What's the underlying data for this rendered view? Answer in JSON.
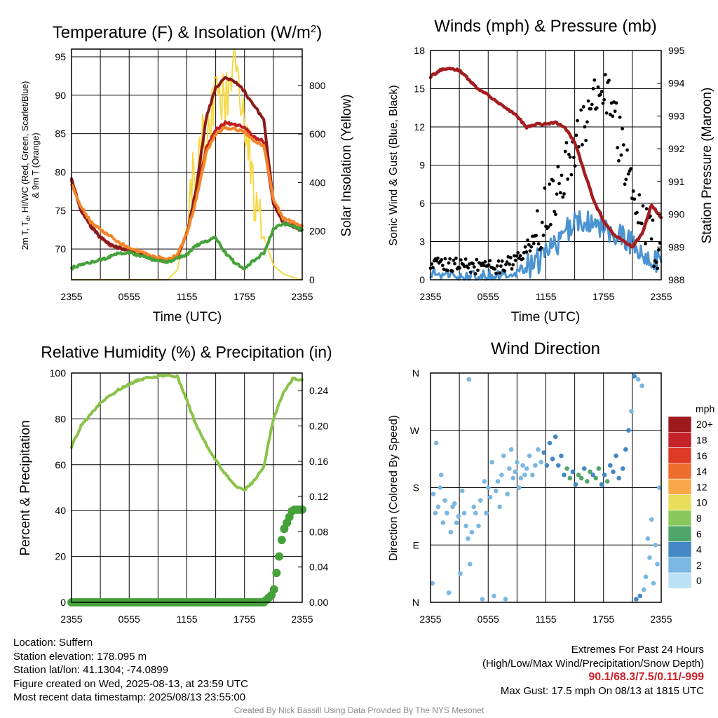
{
  "chart_data": [
    {
      "type": "line",
      "title": "Temperature (F) & Insolation (W/m²)",
      "xlabel": "Time (UTC)",
      "ylabel_left": "2m T, Td, HI/WC (Red, Green, Scarlet/Blue) & 9m T (Orange)",
      "ylabel_right": "Solar Insolation (Yellow)",
      "x_ticks": [
        "2355",
        "0555",
        "1155",
        "1755",
        "2355"
      ],
      "ylim": [
        66,
        96
      ],
      "y_ticks": [
        70,
        75,
        80,
        85,
        90,
        95
      ],
      "ylim_right": [
        0,
        950
      ],
      "y_ticks_right": [
        0,
        200,
        400,
        600,
        800
      ],
      "x_hours_since_2355": [
        0,
        1,
        2,
        3,
        4,
        5,
        6,
        7,
        8,
        9,
        10,
        11,
        12,
        13,
        14,
        15,
        16,
        17,
        18,
        19,
        20,
        21,
        22,
        23,
        24
      ],
      "series": [
        {
          "name": "2m T",
          "color": "#c01e1f",
          "values": [
            79,
            75,
            73,
            71.5,
            70.6,
            70.1,
            69.8,
            69.5,
            69.0,
            68.6,
            68.4,
            69.0,
            72,
            77,
            83,
            85.5,
            86.4,
            86.2,
            85.8,
            84.5,
            84,
            76,
            73.5,
            73.0,
            72.5
          ]
        },
        {
          "name": "Heat Index / Wind Chill",
          "color": "#8b1a1a",
          "values": [
            79,
            75,
            73,
            71.5,
            70.6,
            70.1,
            69.8,
            69.5,
            69.0,
            68.6,
            68.4,
            69.0,
            72,
            78,
            87,
            91,
            92.3,
            91.8,
            90.5,
            88.5,
            87,
            76,
            73.5,
            73.0,
            72.5
          ]
        },
        {
          "name": "9m T",
          "color": "#f4862a",
          "values": [
            78.5,
            75.5,
            73.5,
            72.5,
            71.8,
            70.8,
            70.2,
            69.7,
            69.2,
            68.9,
            68.7,
            69.2,
            72,
            76.5,
            82.5,
            85,
            85.8,
            85.6,
            85.2,
            84,
            83.5,
            76.5,
            74,
            73.5,
            73.0
          ]
        },
        {
          "name": "Td",
          "color": "#45a23a",
          "values": [
            67.5,
            68,
            68.3,
            68.6,
            69,
            69.5,
            69.5,
            69.2,
            68.8,
            68.5,
            68.3,
            68.8,
            69.3,
            70.5,
            71,
            71.5,
            69.5,
            68.2,
            67.5,
            68.5,
            69.5,
            72.5,
            73.3,
            73.0,
            72.5
          ]
        },
        {
          "name": "Solar Insolation",
          "color": "#f6d94a",
          "axis": "right",
          "values": [
            0,
            0,
            0,
            0,
            0,
            0,
            0,
            0,
            0,
            0,
            0,
            40,
            220,
            480,
            620,
            720,
            760,
            810,
            640,
            380,
            180,
            60,
            25,
            10,
            0
          ]
        }
      ]
    },
    {
      "type": "line",
      "title": "Winds (mph) & Pressure (mb)",
      "xlabel": "Time (UTC)",
      "ylabel_left": "Sonic Wind & Gust (Blue, Black)",
      "ylabel_right": "Station Pressure (Maroon)",
      "x_ticks": [
        "2355",
        "0555",
        "1155",
        "1755",
        "2355"
      ],
      "ylim": [
        0,
        18
      ],
      "y_ticks": [
        0,
        3,
        6,
        9,
        12,
        15,
        18
      ],
      "ylim_right": [
        988,
        995
      ],
      "y_ticks_right": [
        988,
        989,
        990,
        991,
        992,
        993,
        994,
        995
      ],
      "x_hours_since_2355": [
        0,
        1,
        2,
        3,
        4,
        5,
        6,
        7,
        8,
        9,
        10,
        11,
        12,
        13,
        14,
        15,
        16,
        17,
        18,
        19,
        20,
        21,
        22,
        23,
        24
      ],
      "series": [
        {
          "name": "Sonic Wind",
          "color": "#4b93d1",
          "values": [
            0.6,
            0.4,
            0.5,
            0.3,
            0.4,
            0.3,
            0.4,
            0.3,
            0.5,
            0.6,
            1.0,
            1.3,
            2.0,
            2.8,
            3.6,
            4.2,
            4.4,
            4.6,
            4.3,
            3.8,
            3.4,
            2.8,
            2.3,
            1.6,
            1.4
          ]
        },
        {
          "name": "Gust",
          "color": "#000000",
          "values": [
            1.5,
            1.2,
            1.3,
            1.0,
            1.1,
            1.0,
            1.0,
            1.1,
            1.2,
            1.5,
            2.5,
            3.5,
            5.5,
            6.8,
            8.5,
            10.5,
            12,
            14,
            15,
            13,
            10,
            7,
            5,
            3,
            2.5
          ]
        },
        {
          "name": "Station Pressure",
          "color": "#a31c20",
          "axis": "right",
          "values": [
            994.2,
            994.4,
            994.45,
            994.4,
            994.1,
            993.8,
            993.65,
            993.4,
            993.2,
            993.0,
            992.65,
            992.75,
            992.75,
            992.8,
            992.65,
            992.2,
            991.3,
            990.4,
            989.8,
            989.4,
            989.2,
            989.0,
            989.4,
            990.3,
            989.9
          ]
        }
      ],
      "gust_max": 17.5
    },
    {
      "type": "line",
      "title": "Relative Humidity (%) & Precipitation (in)",
      "xlabel": "",
      "ylabel_left": "Percent & Precipitation",
      "x_ticks": [
        "2355",
        "0555",
        "1155",
        "1755",
        "2355"
      ],
      "ylim": [
        0,
        100
      ],
      "y_ticks": [
        0,
        20,
        40,
        60,
        80,
        100
      ],
      "ylim_right": [
        0,
        0.26
      ],
      "y_ticks_right": [
        "0.00",
        "0.04",
        "0.08",
        "0.12",
        "0.16",
        "0.20",
        "0.24"
      ],
      "x_hours_since_2355": [
        0,
        1,
        2,
        3,
        4,
        5,
        6,
        7,
        8,
        9,
        10,
        11,
        12,
        13,
        14,
        15,
        16,
        17,
        18,
        19,
        20,
        21,
        22,
        23,
        24
      ],
      "series": [
        {
          "name": "Relative Humidity",
          "color": "#8bc34a",
          "values": [
            68,
            77,
            82,
            87,
            90,
            93,
            95,
            97,
            98,
            98.5,
            99,
            98.5,
            88,
            77,
            69,
            62,
            56,
            51,
            49,
            53,
            59,
            80,
            91,
            97.5,
            97
          ]
        },
        {
          "name": "Precipitation",
          "color": "#45a23a",
          "axis": "right",
          "values": [
            0,
            0,
            0,
            0,
            0,
            0,
            0,
            0,
            0,
            0,
            0,
            0,
            0,
            0,
            0,
            0,
            0,
            0,
            0,
            0,
            0,
            0.01,
            0.08,
            0.105,
            0.105
          ]
        }
      ]
    },
    {
      "type": "scatter",
      "title": "Wind Direction",
      "ylabel": "Direction (Colored By Speed)",
      "x_ticks": [
        "2355",
        "0555",
        "1155",
        "1755",
        "2355"
      ],
      "y_ticks": [
        "N",
        "E",
        "S",
        "W",
        "N"
      ],
      "ylim_degrees": [
        0,
        360
      ],
      "legend_title": "mph",
      "legend_labels": [
        "20+",
        "18",
        "16",
        "14",
        "12",
        "10",
        "8",
        "6",
        "4",
        "2",
        "0"
      ],
      "legend_colors": [
        "#9e1a1f",
        "#c4232a",
        "#dd3b26",
        "#ee6c2d",
        "#f8a748",
        "#e9df5a",
        "#8ac85b",
        "#4fa66a",
        "#4387c4",
        "#7bb7e1",
        "#bde1f4"
      ],
      "points": [
        {
          "x": 0.2,
          "y": 30,
          "speed": 1
        },
        {
          "x": 0.3,
          "y": 170,
          "speed": 1
        },
        {
          "x": 0.5,
          "y": 140,
          "speed": 1
        },
        {
          "x": 0.6,
          "y": 250,
          "speed": 1
        },
        {
          "x": 0.8,
          "y": 150,
          "speed": 1
        },
        {
          "x": 1.0,
          "y": 180,
          "speed": 1
        },
        {
          "x": 1.1,
          "y": 200,
          "speed": 1
        },
        {
          "x": 1.3,
          "y": 125,
          "speed": 1
        },
        {
          "x": 1.5,
          "y": 160,
          "speed": 1
        },
        {
          "x": 1.7,
          "y": 140,
          "speed": 1
        },
        {
          "x": 1.9,
          "y": 15,
          "speed": 1
        },
        {
          "x": 2.1,
          "y": 110,
          "speed": 1
        },
        {
          "x": 2.3,
          "y": 150,
          "speed": 1
        },
        {
          "x": 2.5,
          "y": 155,
          "speed": 1
        },
        {
          "x": 2.7,
          "y": 125,
          "speed": 1
        },
        {
          "x": 2.9,
          "y": 135,
          "speed": 1
        },
        {
          "x": 3.1,
          "y": 45,
          "speed": 1
        },
        {
          "x": 3.3,
          "y": 175,
          "speed": 1
        },
        {
          "x": 3.5,
          "y": 140,
          "speed": 1
        },
        {
          "x": 3.7,
          "y": 120,
          "speed": 1
        },
        {
          "x": 3.9,
          "y": 100,
          "speed": 1
        },
        {
          "x": 4.0,
          "y": 350,
          "speed": 1
        },
        {
          "x": 4.1,
          "y": 60,
          "speed": 1
        },
        {
          "x": 4.3,
          "y": 110,
          "speed": 1
        },
        {
          "x": 4.5,
          "y": 150,
          "speed": 1
        },
        {
          "x": 4.7,
          "y": 140,
          "speed": 1
        },
        {
          "x": 5.0,
          "y": 120,
          "speed": 1
        },
        {
          "x": 5.2,
          "y": 160,
          "speed": 1
        },
        {
          "x": 5.4,
          "y": 5,
          "speed": 1
        },
        {
          "x": 5.6,
          "y": 190,
          "speed": 1
        },
        {
          "x": 5.8,
          "y": 140,
          "speed": 1
        },
        {
          "x": 6.0,
          "y": 180,
          "speed": 1
        },
        {
          "x": 6.2,
          "y": 165,
          "speed": 1
        },
        {
          "x": 6.4,
          "y": 220,
          "speed": 1
        },
        {
          "x": 6.6,
          "y": 10,
          "speed": 1
        },
        {
          "x": 6.8,
          "y": 175,
          "speed": 1
        },
        {
          "x": 7.0,
          "y": 190,
          "speed": 1
        },
        {
          "x": 7.2,
          "y": 150,
          "speed": 1
        },
        {
          "x": 7.4,
          "y": 200,
          "speed": 1
        },
        {
          "x": 7.6,
          "y": 230,
          "speed": 1
        },
        {
          "x": 7.8,
          "y": 5,
          "speed": 1
        },
        {
          "x": 8.0,
          "y": 170,
          "speed": 1
        },
        {
          "x": 8.2,
          "y": 210,
          "speed": 1
        },
        {
          "x": 8.4,
          "y": 240,
          "speed": 1
        },
        {
          "x": 8.6,
          "y": 195,
          "speed": 1
        },
        {
          "x": 8.8,
          "y": 205,
          "speed": 1
        },
        {
          "x": 9.0,
          "y": 220,
          "speed": 1
        },
        {
          "x": 9.2,
          "y": 180,
          "speed": 1
        },
        {
          "x": 9.4,
          "y": 195,
          "speed": 1
        },
        {
          "x": 9.6,
          "y": 215,
          "speed": 1
        },
        {
          "x": 9.8,
          "y": 200,
          "speed": 1
        },
        {
          "x": 10.0,
          "y": 210,
          "speed": 1
        },
        {
          "x": 10.3,
          "y": 230,
          "speed": 2
        },
        {
          "x": 10.6,
          "y": 200,
          "speed": 1
        },
        {
          "x": 10.9,
          "y": 215,
          "speed": 2
        },
        {
          "x": 11.2,
          "y": 240,
          "speed": 2
        },
        {
          "x": 11.5,
          "y": 220,
          "speed": 2
        },
        {
          "x": 11.8,
          "y": 235,
          "speed": 3
        },
        {
          "x": 12.1,
          "y": 215,
          "speed": 3
        },
        {
          "x": 12.4,
          "y": 250,
          "speed": 3
        },
        {
          "x": 12.7,
          "y": 225,
          "speed": 3
        },
        {
          "x": 13.0,
          "y": 260,
          "speed": 4
        },
        {
          "x": 13.3,
          "y": 215,
          "speed": 3
        },
        {
          "x": 13.6,
          "y": 230,
          "speed": 4
        },
        {
          "x": 13.9,
          "y": 200,
          "speed": 4
        },
        {
          "x": 14.2,
          "y": 210,
          "speed": 5
        },
        {
          "x": 14.5,
          "y": 195,
          "speed": 6
        },
        {
          "x": 14.8,
          "y": 205,
          "speed": 4
        },
        {
          "x": 15.1,
          "y": 185,
          "speed": 4
        },
        {
          "x": 15.4,
          "y": 200,
          "speed": 5
        },
        {
          "x": 15.7,
          "y": 195,
          "speed": 6
        },
        {
          "x": 16.0,
          "y": 210,
          "speed": 4
        },
        {
          "x": 16.3,
          "y": 190,
          "speed": 5
        },
        {
          "x": 16.6,
          "y": 205,
          "speed": 6
        },
        {
          "x": 16.9,
          "y": 200,
          "speed": 4
        },
        {
          "x": 17.2,
          "y": 195,
          "speed": 5
        },
        {
          "x": 17.5,
          "y": 210,
          "speed": 6
        },
        {
          "x": 17.8,
          "y": 185,
          "speed": 4
        },
        {
          "x": 18.1,
          "y": 200,
          "speed": 4
        },
        {
          "x": 18.4,
          "y": 190,
          "speed": 5
        },
        {
          "x": 18.7,
          "y": 215,
          "speed": 4
        },
        {
          "x": 19.0,
          "y": 205,
          "speed": 4
        },
        {
          "x": 19.3,
          "y": 230,
          "speed": 3
        },
        {
          "x": 19.6,
          "y": 195,
          "speed": 4
        },
        {
          "x": 20.0,
          "y": 210,
          "speed": 3
        },
        {
          "x": 20.3,
          "y": 240,
          "speed": 3
        },
        {
          "x": 20.6,
          "y": 270,
          "speed": 3
        },
        {
          "x": 20.9,
          "y": 300,
          "speed": 2
        },
        {
          "x": 21.2,
          "y": 355,
          "speed": 3
        },
        {
          "x": 21.4,
          "y": 5,
          "speed": 3
        },
        {
          "x": 21.6,
          "y": 350,
          "speed": 2
        },
        {
          "x": 21.8,
          "y": 10,
          "speed": 4
        },
        {
          "x": 22.0,
          "y": 340,
          "speed": 2
        },
        {
          "x": 22.2,
          "y": 20,
          "speed": 2
        },
        {
          "x": 22.4,
          "y": 40,
          "speed": 1
        },
        {
          "x": 22.6,
          "y": 100,
          "speed": 1
        },
        {
          "x": 22.8,
          "y": 70,
          "speed": 2
        },
        {
          "x": 23.0,
          "y": 130,
          "speed": 1
        },
        {
          "x": 23.2,
          "y": 30,
          "speed": 1
        },
        {
          "x": 23.4,
          "y": 90,
          "speed": 1
        },
        {
          "x": 23.6,
          "y": 60,
          "speed": 1
        },
        {
          "x": 23.8,
          "y": 180,
          "speed": 1
        }
      ]
    }
  ],
  "footer": {
    "location": "Location: Suffern",
    "elevation": "Station elevation: 178.095 m",
    "latlon": "Station lat/lon: 41.1304; -74.0899",
    "created": "Figure created on Wed, 2025-08-13, at 23:59 UTC",
    "recent": "Most recent data timestamp: 2025/08/13 23:55:00",
    "extremes_title": "Extremes For Past 24 Hours",
    "extremes_legend": "(High/Low/Max Wind/Precipitation/Snow Depth)",
    "extremes_values": "90.1/68.3/7.5/0.11/-999",
    "max_gust": "Max Gust: 17.5 mph On 08/13 at 1815 UTC",
    "credit": "Created By Nick Bassill Using Data Provided By The NYS Mesonet"
  }
}
